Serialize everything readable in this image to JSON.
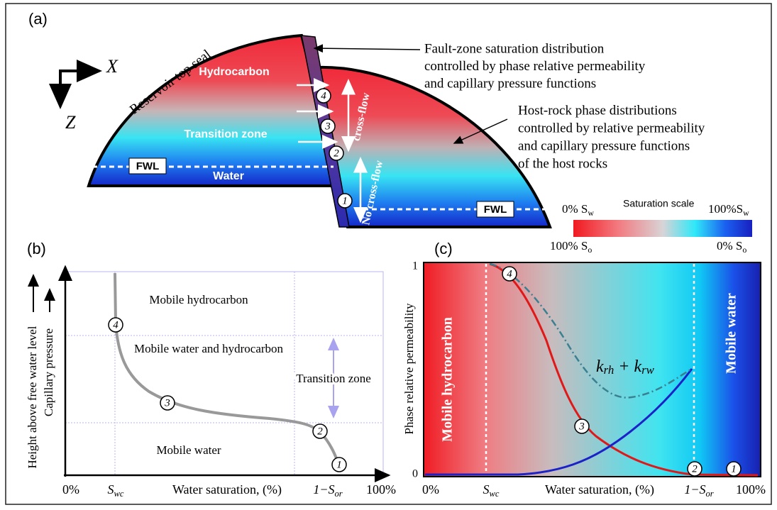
{
  "panel_a": {
    "label": "(a)",
    "axis_x": "X",
    "axis_z": "Z",
    "top_seal": "Reservoir top seal",
    "hydrocarbon": "Hydrocarbon",
    "transition": "Transition zone",
    "water": "Water",
    "fwl_left": "FWL",
    "fwl_right": "FWL",
    "cross_flow": "cross-flow",
    "no_cross_flow": "No cross-flow",
    "markers": [
      "4",
      "3",
      "2",
      "1"
    ],
    "fault_note": [
      "Fault-zone saturation distribution",
      "controlled by phase relative permeability",
      "and capillary pressure functions"
    ],
    "host_note": [
      "Host-rock phase distributions",
      "controlled by relative permeability",
      "and capillary pressure functions",
      "of the host rocks"
    ],
    "scale": {
      "title": "Saturation scale",
      "sw_min": [
        "0% S",
        "w"
      ],
      "sw_max": [
        "100%S",
        "w"
      ],
      "so_max": [
        "100% S",
        "o"
      ],
      "so_min": [
        "0% S",
        "o"
      ]
    }
  },
  "panel_b": {
    "label": "(b)",
    "y_label_outer": "Height above free water level",
    "y_label_inner": "Capillary pressure",
    "mobile_hydrocarbon": "Mobile hydrocarbon",
    "mobile_both": "Mobile water and  hydrocarbon",
    "transition": "Transition zone",
    "mobile_water": "Mobile water",
    "markers": [
      "4",
      "3",
      "2",
      "1"
    ],
    "x_labels": {
      "start": "0%",
      "swc": [
        "S",
        "wc"
      ],
      "title": "Water saturation, (%)",
      "sor": [
        "1−S",
        "or"
      ],
      "end": "100%"
    }
  },
  "panel_c": {
    "label": "(c)",
    "y_label": "Phase relative permeability",
    "y_top": "1",
    "y_bottom": "0",
    "mobile_hydrocarbon": "Mobile hydrocarbon",
    "mobile_water": "Mobile water",
    "sum_label": [
      "k",
      "rh",
      " + k",
      "rw"
    ],
    "markers": [
      "4",
      "3",
      "2",
      "1"
    ],
    "x_labels": {
      "start": "0%",
      "swc": [
        "S",
        "wc"
      ],
      "title": "Water saturation, (%)",
      "sor": [
        "1−S",
        "or"
      ],
      "end": "100%"
    }
  }
}
